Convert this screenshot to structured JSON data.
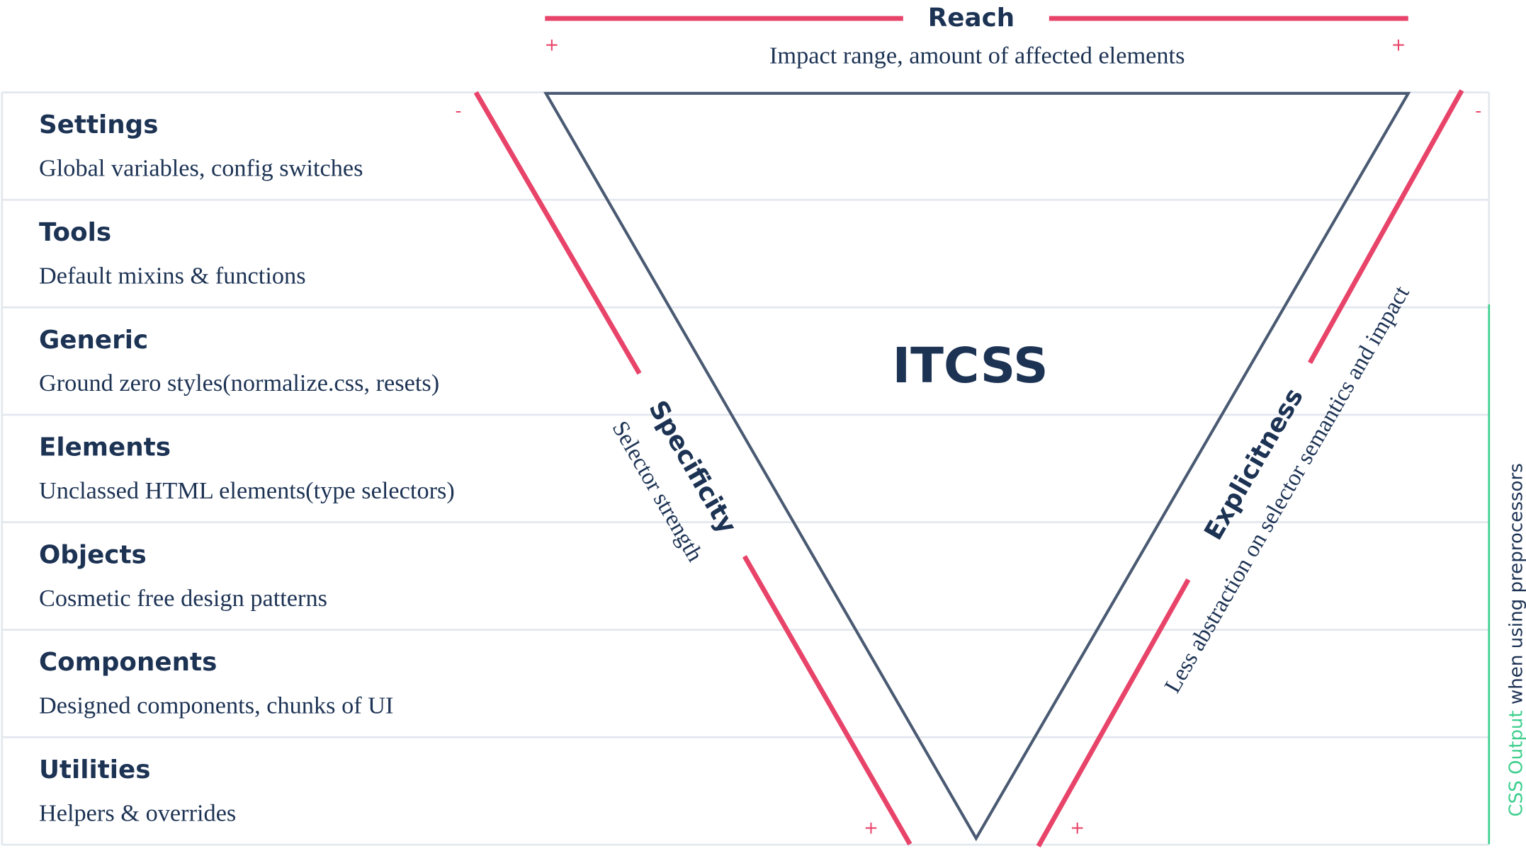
{
  "header": {
    "title": "Reach",
    "subtitle": "Impact range, amount of affected elements",
    "left_marker": "+",
    "right_marker": "+"
  },
  "layers": [
    {
      "name": "Settings",
      "description": "Global variables, config switches"
    },
    {
      "name": "Tools",
      "description": "Default mixins & functions"
    },
    {
      "name": "Generic",
      "description": "Ground zero styles(normalize.css, resets)"
    },
    {
      "name": "Elements",
      "description": "Unclassed HTML elements(type selectors)"
    },
    {
      "name": "Objects",
      "description": "Cosmetic free design patterns"
    },
    {
      "name": "Components",
      "description": "Designed components, chunks of UI"
    },
    {
      "name": "Utilities",
      "description": "Helpers & overrides"
    }
  ],
  "triangle": {
    "label": "ITCSS"
  },
  "specificity": {
    "title": "Specificity",
    "subtitle": "Selector strength",
    "top_marker": "-",
    "bottom_marker": "+"
  },
  "explicitness": {
    "title": "Explicitness",
    "subtitle": "Less abstraction on selector semantics and impact",
    "top_marker": "-",
    "bottom_marker": "+"
  },
  "side_note": {
    "highlight": "CSS Output",
    "text": "when using preprocessors"
  }
}
